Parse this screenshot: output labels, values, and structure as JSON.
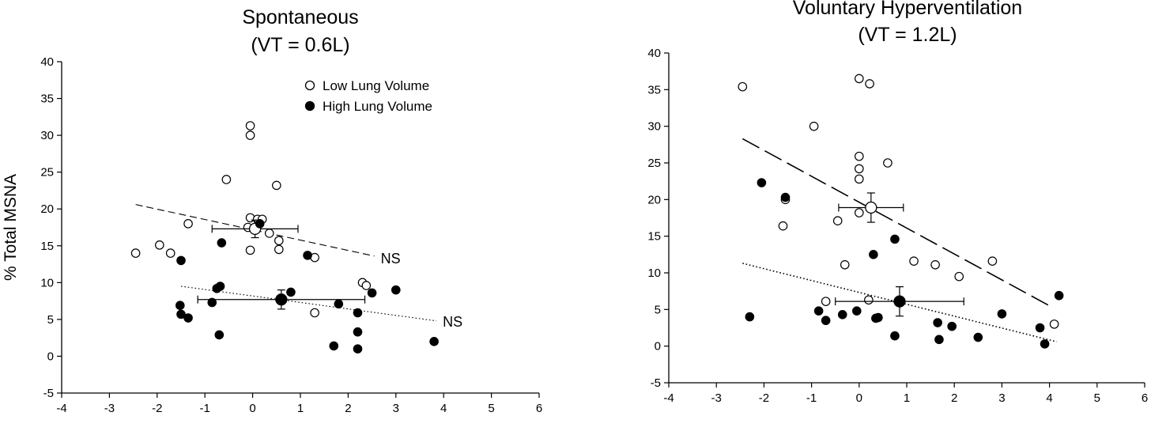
{
  "chart_data": [
    {
      "type": "scatter",
      "title": "Spontaneous",
      "subtitle": "(VT = 0.6L)",
      "xlabel": "",
      "ylabel": "% Total MSNA",
      "xlim": [
        -4,
        6
      ],
      "ylim": [
        -5,
        40
      ],
      "xticks": [
        "-4",
        "-3",
        "-2",
        "-1",
        "0",
        "1",
        "2",
        "3",
        "4",
        "5",
        "6"
      ],
      "yticks": [
        "-5",
        "0",
        "5",
        "10",
        "15",
        "20",
        "25",
        "30",
        "35",
        "40"
      ],
      "legend_position": "top-right",
      "series": [
        {
          "name": "Low Lung Volume",
          "marker": "open-circle",
          "points": [
            [
              -2.45,
              14
            ],
            [
              -1.95,
              15.1
            ],
            [
              -1.72,
              14
            ],
            [
              -1.35,
              18
            ],
            [
              -0.55,
              24
            ],
            [
              -0.05,
              31.3
            ],
            [
              -0.05,
              30
            ],
            [
              -0.05,
              18.8
            ],
            [
              -0.1,
              17.5
            ],
            [
              -0.05,
              14.4
            ],
            [
              0.1,
              18.6
            ],
            [
              0.2,
              18.6
            ],
            [
              0.35,
              16.7
            ],
            [
              0.5,
              23.2
            ],
            [
              0.55,
              15.7
            ],
            [
              0.55,
              14.5
            ],
            [
              1.3,
              13.4
            ],
            [
              2.3,
              10
            ],
            [
              2.38,
              9.6
            ],
            [
              1.3,
              5.9
            ]
          ],
          "mean": {
            "x": 0.05,
            "y": 17.3,
            "x_err": 0.9,
            "y_err": 1.2
          },
          "fit": {
            "x1": -2.45,
            "y1": 20.6,
            "x2": 2.55,
            "y2": 13.6,
            "style": "dashed"
          },
          "fit_label": "NS"
        },
        {
          "name": "High Lung Volume",
          "marker": "filled-circle",
          "points": [
            [
              -1.5,
              13
            ],
            [
              -0.65,
              15.4
            ],
            [
              0.15,
              18
            ],
            [
              1.15,
              13.7
            ],
            [
              -1.52,
              6.9
            ],
            [
              -1.5,
              5.7
            ],
            [
              -1.35,
              5.2
            ],
            [
              -0.75,
              9.2
            ],
            [
              -0.68,
              9.5
            ],
            [
              -0.85,
              7.3
            ],
            [
              -0.7,
              2.9
            ],
            [
              0.8,
              8.7
            ],
            [
              1.8,
              7.1
            ],
            [
              2.2,
              5.9
            ],
            [
              2.2,
              3.3
            ],
            [
              2.5,
              8.6
            ],
            [
              3.0,
              9.0
            ],
            [
              1.7,
              1.4
            ],
            [
              2.2,
              1.0
            ],
            [
              3.8,
              2.0
            ]
          ],
          "mean": {
            "x": 0.6,
            "y": 7.7,
            "x_err": 1.75,
            "y_err": 1.3
          },
          "fit": {
            "x1": -1.5,
            "y1": 9.5,
            "x2": 3.85,
            "y2": 4.8,
            "style": "dotted"
          },
          "fit_label": "NS"
        }
      ]
    },
    {
      "type": "scatter",
      "title": "Voluntary Hyperventilation",
      "subtitle": "(VT = 1.2L)",
      "xlabel": "",
      "ylabel": "",
      "xlim": [
        -4,
        6
      ],
      "ylim": [
        -5,
        40
      ],
      "xticks": [
        "-4",
        "-3",
        "-2",
        "-1",
        "0",
        "1",
        "2",
        "3",
        "4",
        "5",
        "6"
      ],
      "yticks": [
        "-5",
        "0",
        "5",
        "10",
        "15",
        "20",
        "25",
        "30",
        "35",
        "40"
      ],
      "series": [
        {
          "name": "Low Lung Volume",
          "marker": "open-circle",
          "points": [
            [
              -2.45,
              35.4
            ],
            [
              -0.95,
              30
            ],
            [
              0.0,
              36.5
            ],
            [
              0.22,
              35.8
            ],
            [
              0.0,
              25.9
            ],
            [
              0.0,
              24.2
            ],
            [
              0.0,
              22.8
            ],
            [
              0.6,
              25
            ],
            [
              -1.55,
              20
            ],
            [
              -1.6,
              16.4
            ],
            [
              -0.45,
              17.1
            ],
            [
              0.0,
              18.2
            ],
            [
              -0.3,
              11.1
            ],
            [
              1.15,
              11.6
            ],
            [
              1.6,
              11.1
            ],
            [
              2.8,
              11.6
            ],
            [
              2.1,
              9.5
            ],
            [
              -0.7,
              6.1
            ],
            [
              0.2,
              6.3
            ],
            [
              4.1,
              3.0
            ]
          ],
          "mean": {
            "x": 0.25,
            "y": 18.9,
            "x_err": 0.68,
            "y_err": 2.0
          },
          "fit": {
            "x1": -2.45,
            "y1": 28.3,
            "x2": 4.0,
            "y2": 5.5,
            "style": "dashed"
          },
          "fit_label": ""
        },
        {
          "name": "High Lung Volume",
          "marker": "filled-circle",
          "points": [
            [
              -2.05,
              22.3
            ],
            [
              -1.55,
              20.3
            ],
            [
              -2.3,
              4.0
            ],
            [
              -0.85,
              4.8
            ],
            [
              -0.7,
              3.5
            ],
            [
              -0.35,
              4.3
            ],
            [
              -0.05,
              4.8
            ],
            [
              0.3,
              12.5
            ],
            [
              0.35,
              3.8
            ],
            [
              0.4,
              3.9
            ],
            [
              0.75,
              14.6
            ],
            [
              0.75,
              1.4
            ],
            [
              1.65,
              3.2
            ],
            [
              1.68,
              0.9
            ],
            [
              1.95,
              2.7
            ],
            [
              2.5,
              1.2
            ],
            [
              3.0,
              4.4
            ],
            [
              3.8,
              2.5
            ],
            [
              3.9,
              0.3
            ],
            [
              4.2,
              6.9
            ]
          ],
          "mean": {
            "x": 0.85,
            "y": 6.1,
            "x_err": 1.35,
            "y_err": 2.0
          },
          "fit": {
            "x1": -2.45,
            "y1": 11.3,
            "x2": 4.15,
            "y2": 0.6,
            "style": "dotted"
          },
          "fit_label": ""
        }
      ]
    }
  ]
}
